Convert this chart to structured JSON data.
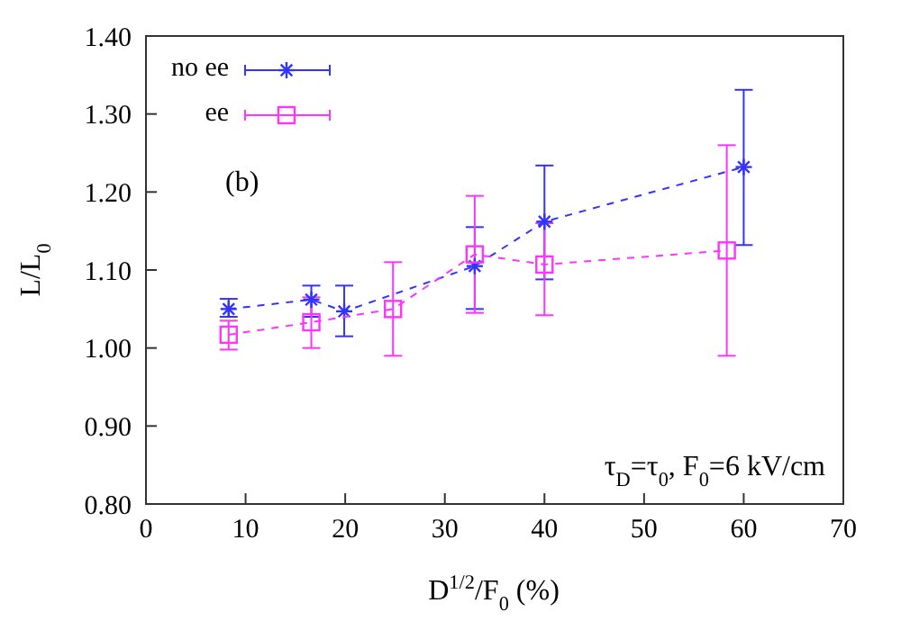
{
  "chart_data": {
    "type": "line",
    "xlabel": "D$^{1/2}$/F$_{0}$ (%)",
    "ylabel": "L/L$_{0}$",
    "xlim": [
      0,
      70
    ],
    "xticks": [
      0,
      10,
      20,
      30,
      40,
      50,
      60,
      70
    ],
    "ylim": [
      0.8,
      1.4
    ],
    "yticks": [
      {
        "value": 0.8,
        "label": "0.80"
      },
      {
        "value": 0.9,
        "label": "0.90"
      },
      {
        "value": 1.0,
        "label": "1.00"
      },
      {
        "value": 1.1,
        "label": "1.10"
      },
      {
        "value": 1.2,
        "label": "1.20"
      },
      {
        "value": 1.3,
        "label": "1.30"
      },
      {
        "value": 1.4,
        "label": "1.40"
      }
    ],
    "legend": "top left",
    "line_style": "dashed",
    "annotations": [
      "(b)",
      "τ$_{D}$=τ$_{0}$, F$_{0}$=6 kV/cm"
    ],
    "series": [
      {
        "name": "no ee",
        "color": "#3333ff",
        "marker": "cross",
        "x": [
          8.3,
          16.6,
          19.9,
          33,
          40,
          60
        ],
        "values": [
          1.05,
          1.062,
          1.047,
          1.105,
          1.162,
          1.232
        ],
        "errors": [
          [
            1.04,
            1.063
          ],
          [
            1.04,
            1.08
          ],
          [
            1.015,
            1.08
          ],
          [
            1.05,
            1.155
          ],
          [
            1.088,
            1.234
          ],
          [
            1.132,
            1.331
          ]
        ]
      },
      {
        "name": "ee",
        "color": "#ff33ff",
        "marker": "square",
        "x": [
          8.3,
          16.6,
          24.8,
          33,
          40,
          58.3
        ],
        "values": [
          1.017,
          1.033,
          1.05,
          1.12,
          1.107,
          1.125
        ],
        "errors": [
          [
            0.998,
            1.035
          ],
          [
            1.0,
            1.065
          ],
          [
            0.99,
            1.11
          ],
          [
            1.045,
            1.195
          ],
          [
            1.042,
            1.16
          ],
          [
            0.99,
            1.26
          ]
        ]
      }
    ]
  }
}
